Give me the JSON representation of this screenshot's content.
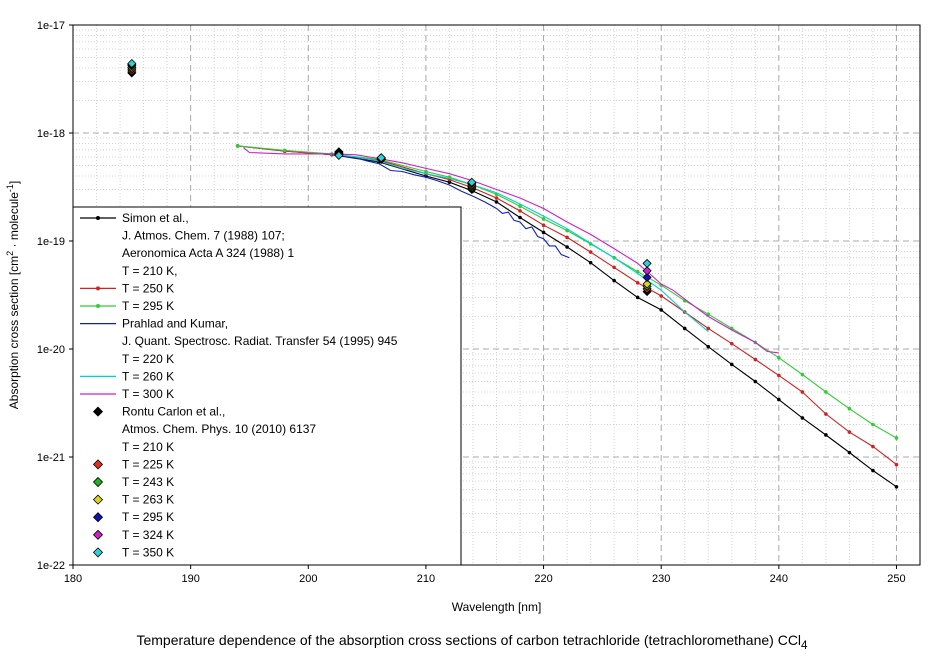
{
  "caption": {
    "text": "Temperature dependence of the absorption cross sections of carbon tetrachloride (tetrachloromethane) CCl",
    "sub": "4"
  },
  "chart_data": {
    "type": "line",
    "xlabel": "Wavelength [nm]",
    "ylabel_parts": [
      "Absorption cross section [cm",
      "2",
      " · molecule",
      "-1",
      "]"
    ],
    "xlim": [
      180,
      252
    ],
    "ylim": [
      1e-22,
      1e-17
    ],
    "yscale": "log",
    "grid": true,
    "legend_placement": "lower-left",
    "x_ticks": [
      180,
      190,
      200,
      210,
      220,
      230,
      240,
      250
    ],
    "y_ticks": [
      {
        "value": 1e-22,
        "label": "1e-22"
      },
      {
        "value": 1e-21,
        "label": "1e-21"
      },
      {
        "value": 1e-20,
        "label": "1e-20"
      },
      {
        "value": 1e-19,
        "label": "1e-19"
      },
      {
        "value": 1e-18,
        "label": "1e-18"
      },
      {
        "value": 1e-17,
        "label": "1e-17"
      }
    ],
    "series": [
      {
        "key": "simon210",
        "color": "#000000",
        "marker": "dot",
        "x": [
          194,
          198,
          202,
          206,
          210,
          212,
          214,
          216,
          218,
          220,
          222,
          224,
          226,
          228,
          230,
          232,
          234,
          236,
          238,
          240,
          242,
          244,
          246,
          248,
          250
        ],
        "y": [
          7.6e-19,
          6.8e-19,
          6.3e-19,
          5.4e-19,
          4e-19,
          3.5e-19,
          2.9e-19,
          2.3e-19,
          1.65e-19,
          1.2e-19,
          8.8e-20,
          6.3e-20,
          4.3e-20,
          3e-20,
          2.3e-20,
          1.55e-20,
          1.05e-20,
          7.2e-21,
          5e-21,
          3.4e-21,
          2.3e-21,
          1.6e-21,
          1.1e-21,
          7.5e-22,
          5.3e-22
        ]
      },
      {
        "key": "simon250",
        "color": "#d42020",
        "marker": "dot",
        "x": [
          194,
          198,
          202,
          206,
          210,
          212,
          214,
          216,
          218,
          220,
          222,
          224,
          226,
          228,
          230,
          232,
          234,
          236,
          238,
          240,
          242,
          244,
          246,
          248,
          250
        ],
        "y": [
          7.6e-19,
          6.8e-19,
          6.3e-19,
          5.6e-19,
          4.2e-19,
          3.7e-19,
          3.1e-19,
          2.5e-19,
          1.9e-19,
          1.4e-19,
          1.08e-19,
          7.9e-20,
          5.7e-20,
          4.1e-20,
          3.1e-20,
          2.2e-20,
          1.55e-20,
          1.12e-20,
          8e-21,
          5.7e-21,
          4e-21,
          2.5e-21,
          1.7e-21,
          1.25e-21,
          8.5e-22
        ]
      },
      {
        "key": "simon295",
        "color": "#33cc33",
        "marker": "dot",
        "x": [
          194,
          198,
          202,
          206,
          210,
          212,
          214,
          216,
          218,
          220,
          222,
          224,
          226,
          228,
          230,
          232,
          234,
          236,
          238,
          240,
          242,
          244,
          246,
          248,
          250
        ],
        "y": [
          7.6e-19,
          6.9e-19,
          6.4e-19,
          5.7e-19,
          4.4e-19,
          3.9e-19,
          3.3e-19,
          2.7e-19,
          2.1e-19,
          1.6e-19,
          1.25e-19,
          9.4e-20,
          7e-20,
          5.2e-20,
          3.9e-20,
          2.8e-20,
          2.1e-20,
          1.55e-20,
          1.15e-20,
          8.3e-21,
          5.8e-21,
          4e-21,
          2.8e-21,
          2e-21,
          1.5e-21
        ]
      },
      {
        "key": "prahlad220",
        "color": "#1020c0",
        "marker": "none",
        "x": [
          202,
          204,
          205,
          206,
          207,
          208,
          209,
          210,
          211,
          212,
          213,
          214,
          215,
          216,
          216.5,
          217,
          217.5,
          218,
          218.5,
          219,
          219.5,
          220,
          220.5,
          221,
          221.5,
          222.2
        ],
        "y": [
          6.3e-19,
          5.9e-19,
          5.5e-19,
          5.2e-19,
          4.5e-19,
          4.4e-19,
          4.1e-19,
          3.9e-19,
          3.6e-19,
          3.3e-19,
          2.9e-19,
          2.6e-19,
          2.3e-19,
          2e-19,
          1.8e-19,
          1.85e-19,
          1.55e-19,
          1.5e-19,
          1.3e-19,
          1.35e-19,
          1.1e-19,
          1.05e-19,
          9e-20,
          9e-20,
          7.5e-20,
          7e-20
        ]
      },
      {
        "key": "prahlad260",
        "color": "#00d0d0",
        "marker": "none",
        "x": [
          202,
          204,
          206,
          208,
          210,
          212,
          214,
          216,
          218,
          220,
          222,
          224,
          226,
          228,
          230,
          232,
          234
        ],
        "y": [
          6.4e-19,
          6e-19,
          5.5e-19,
          4.7e-19,
          4.2e-19,
          3.8e-19,
          3.3e-19,
          2.8e-19,
          2.2e-19,
          1.7e-19,
          1.3e-19,
          9.5e-20,
          7e-20,
          5e-20,
          3.5e-20,
          2.2e-20,
          1.45e-20
        ]
      },
      {
        "key": "prahlad300",
        "color": "#cc22cc",
        "marker": "none",
        "x": [
          194.5,
          195,
          198,
          202,
          204,
          206,
          208,
          210,
          212,
          214,
          216,
          218,
          220,
          222,
          224,
          226,
          228,
          229,
          230,
          231,
          232,
          234,
          236,
          238,
          239,
          240
        ],
        "y": [
          7.3e-19,
          6.6e-19,
          6.4e-19,
          6.4e-19,
          6.3e-19,
          5.8e-19,
          5.3e-19,
          4.7e-19,
          4.2e-19,
          3.6e-19,
          3e-19,
          2.5e-19,
          2e-19,
          1.5e-19,
          1.15e-19,
          8.5e-20,
          6.2e-20,
          5e-20,
          4e-20,
          3.5e-20,
          2.9e-20,
          2e-20,
          1.5e-20,
          1.15e-20,
          9.5e-21,
          9.2e-21
        ]
      },
      {
        "key": "rontu210",
        "color": "#000000",
        "marker": "diamond",
        "x": [
          185,
          202.6,
          206.2,
          213.9,
          228.8
        ],
        "y": [
          3.6e-18,
          6.7e-19,
          5.75e-19,
          3e-19,
          3.4e-20
        ]
      },
      {
        "key": "rontu225",
        "color": "#e03020",
        "marker": "diamond",
        "x": [
          185,
          202.6,
          206.2,
          213.9,
          228.8
        ],
        "y": [
          3.75e-18,
          6.6e-19,
          5.7e-19,
          3.1e-19,
          3.6e-20
        ]
      },
      {
        "key": "rontu243",
        "color": "#20b020",
        "marker": "diamond",
        "x": [
          185,
          202.6,
          206.2,
          213.9,
          228.8
        ],
        "y": [
          3.9e-18,
          6.5e-19,
          5.7e-19,
          3.2e-19,
          3.8e-20
        ]
      },
      {
        "key": "rontu263",
        "color": "#e0d020",
        "marker": "diamond",
        "x": [
          185,
          202.6,
          206.2,
          213.9,
          228.8
        ],
        "y": [
          4.05e-18,
          6.4e-19,
          5.75e-19,
          3.3e-19,
          4e-20
        ]
      },
      {
        "key": "rontu295",
        "color": "#1010c0",
        "marker": "diamond",
        "x": [
          185,
          202.6,
          206.2,
          213.9,
          228.8
        ],
        "y": [
          4.2e-18,
          6.3e-19,
          5.8e-19,
          3.4e-19,
          4.6e-20
        ]
      },
      {
        "key": "rontu324",
        "color": "#cc22cc",
        "marker": "diamond",
        "x": [
          185,
          202.6,
          206.2,
          213.9,
          228.8
        ],
        "y": [
          4.3e-18,
          6.3e-19,
          5.9e-19,
          3.45e-19,
          5.3e-20
        ]
      },
      {
        "key": "rontu350",
        "color": "#30d0d8",
        "marker": "diamond",
        "x": [
          185,
          202.6,
          206.2,
          213.9,
          228.8
        ],
        "y": [
          4.4e-18,
          6.2e-19,
          5.9e-19,
          3.5e-19,
          6.2e-20
        ]
      }
    ],
    "legend": [
      {
        "text": "Simon et al.,",
        "series": "simon210",
        "sym": "line-dot"
      },
      {
        "text": "J. Atmos. Chem. 7 (1988) 107;",
        "sym": "none"
      },
      {
        "text": "Aeronomica Acta A 324 (1988) 1",
        "sym": "none"
      },
      {
        "text": "T = 210 K,",
        "sym": "none"
      },
      {
        "text": "T = 250 K",
        "series": "simon250",
        "sym": "line-dot"
      },
      {
        "text": "T = 295 K",
        "series": "simon295",
        "sym": "line-dot"
      },
      {
        "text": "Prahlad and Kumar,",
        "series": "prahlad220",
        "sym": "line"
      },
      {
        "text": "J. Quant. Spectrosc. Radiat. Transfer 54 (1995) 945",
        "sym": "none"
      },
      {
        "text": "T = 220 K",
        "sym": "none"
      },
      {
        "text": "T = 260 K",
        "series": "prahlad260",
        "sym": "line"
      },
      {
        "text": "T = 300 K",
        "series": "prahlad300",
        "sym": "line"
      },
      {
        "text": "Rontu Carlon et al.,",
        "series": "rontu210",
        "sym": "diamond"
      },
      {
        "text": "Atmos. Chem. Phys. 10 (2010) 6137",
        "sym": "none"
      },
      {
        "text": "T = 210 K",
        "sym": "none"
      },
      {
        "text": "T = 225 K",
        "series": "rontu225",
        "sym": "diamond"
      },
      {
        "text": "T = 243 K",
        "series": "rontu243",
        "sym": "diamond"
      },
      {
        "text": "T = 263 K",
        "series": "rontu263",
        "sym": "diamond"
      },
      {
        "text": "T = 295 K",
        "series": "rontu295",
        "sym": "diamond"
      },
      {
        "text": "T = 324 K",
        "series": "rontu324",
        "sym": "diamond"
      },
      {
        "text": "T = 350 K",
        "series": "rontu350",
        "sym": "diamond"
      }
    ]
  }
}
